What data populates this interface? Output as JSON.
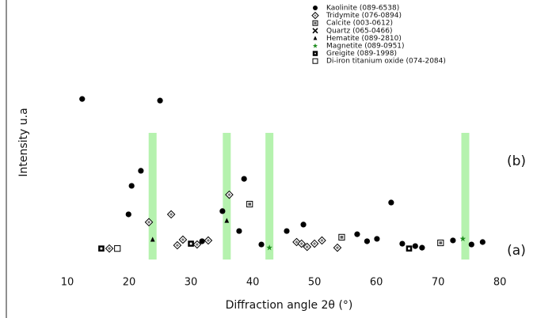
{
  "chart_data": {
    "type": "scatter",
    "x_label": "Diffraction angle 2θ (°)",
    "y_label": "Intensity u.a",
    "annotations": [
      "(b)",
      "(a)"
    ],
    "xlim": [
      0,
      86
    ],
    "xticks": [
      10,
      20,
      30,
      40,
      50,
      60,
      70,
      80
    ],
    "ylim": [
      0,
      100
    ],
    "highlights": [
      23.8,
      35.8,
      42.7,
      74.4
    ],
    "highlight_ylim": [
      3.5,
      50.6
    ],
    "highlight_color": "#a8f0a0",
    "series": [
      {
        "name": "Kaolinite (089-6538)",
        "marker": "circle",
        "color": "#000000",
        "x": [
          12.4,
          25.0,
          21.9,
          20.4,
          19.9,
          38.6,
          35.1,
          37.8,
          41.4,
          45.5,
          48.2,
          56.9,
          58.5,
          60.1,
          62.4,
          64.2,
          66.3,
          67.4,
          72.4,
          75.4,
          77.2,
          31.8
        ],
        "values": [
          63.2,
          62.6,
          36.5,
          30.9,
          20.3,
          33.5,
          21.5,
          14.1,
          9.1,
          14.1,
          16.5,
          12.9,
          10.3,
          11.2,
          24.7,
          9.4,
          8.5,
          7.9,
          10.6,
          9.1,
          10.0,
          10.3
        ]
      },
      {
        "name": "Tridymite (076-0894)",
        "marker": "diamond",
        "color": "#000000",
        "x": [
          16.8,
          23.2,
          26.8,
          27.8,
          28.7,
          31.0,
          32.8,
          36.2,
          47.1,
          47.9,
          48.8,
          50.0,
          51.2,
          53.7
        ],
        "values": [
          7.6,
          17.4,
          20.3,
          8.8,
          10.9,
          9.1,
          10.6,
          27.6,
          10.0,
          9.4,
          8.2,
          9.4,
          10.6,
          7.9
        ]
      },
      {
        "name": "Calcite (003-0612)",
        "marker": "box-dot",
        "color": "#000000",
        "x": [
          39.5,
          54.4,
          70.4
        ],
        "values": [
          24.1,
          11.8,
          9.7
        ]
      },
      {
        "name": "Quartz (065-0466)",
        "marker": "x",
        "color": "#000000",
        "x": [],
        "values": []
      },
      {
        "name": "Hematite (089-2810)",
        "marker": "triangle",
        "color": "#000000",
        "x": [
          23.8,
          35.8
        ],
        "values": [
          10.9,
          17.9
        ]
      },
      {
        "name": "Magnetite (089-0951)",
        "marker": "star",
        "color": "#1e8c1e",
        "x": [
          42.7,
          74.0
        ],
        "values": [
          7.9,
          11.2
        ]
      },
      {
        "name": "Greigite (089-1998)",
        "marker": "box-bold",
        "color": "#000000",
        "x": [
          15.5,
          30.0,
          65.3
        ],
        "values": [
          7.6,
          9.4,
          7.6
        ]
      },
      {
        "name": "Di-iron titanium oxide (074-2084)",
        "marker": "box-open",
        "color": "#000000",
        "x": [
          18.1
        ],
        "values": [
          7.6
        ]
      }
    ]
  }
}
